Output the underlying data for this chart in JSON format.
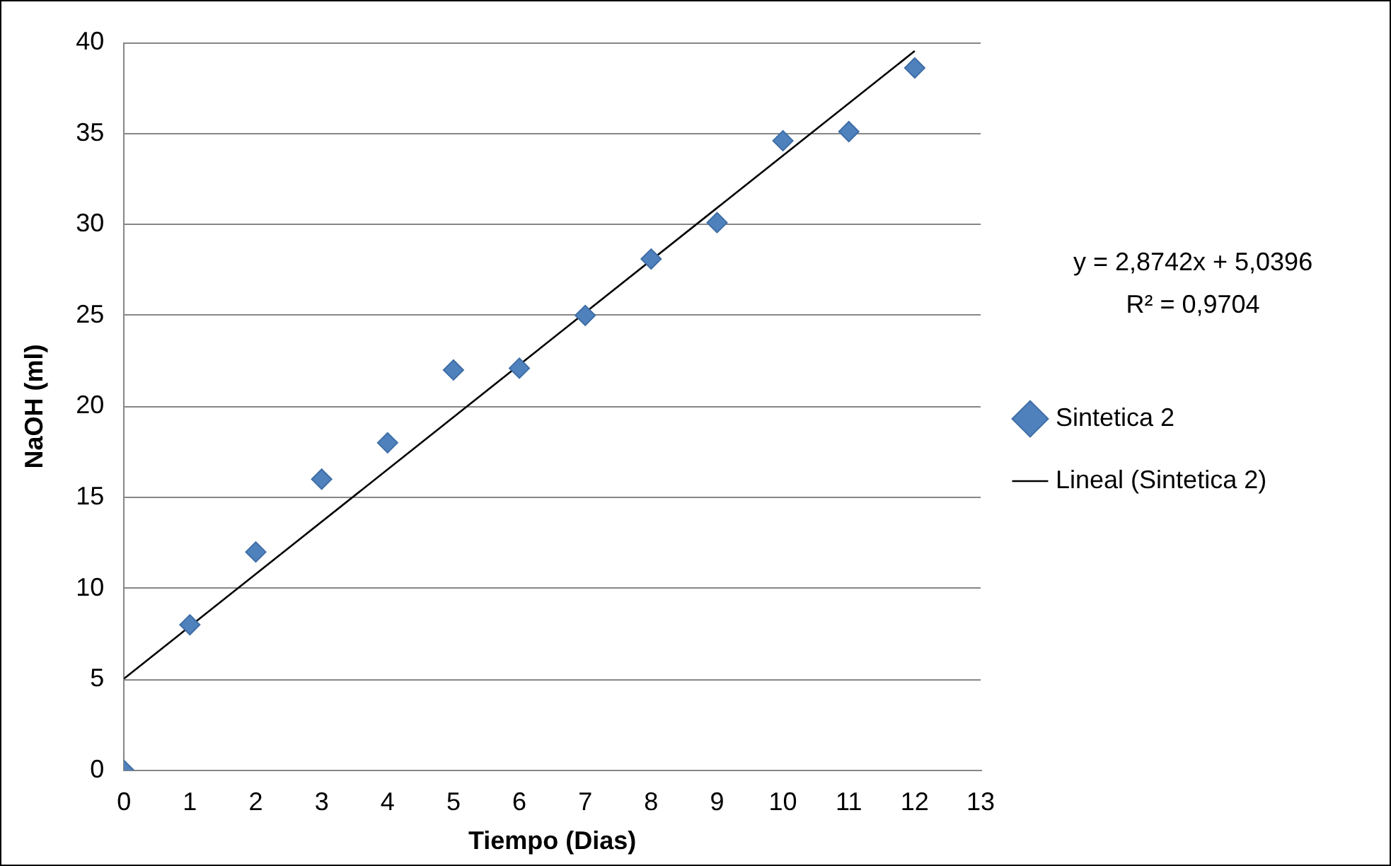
{
  "chart_data": {
    "type": "scatter",
    "xlabel": "Tiempo (Dias)",
    "ylabel": "NaOH (ml)",
    "x": [
      0,
      1,
      2,
      3,
      4,
      5,
      6,
      7,
      8,
      9,
      10,
      11,
      12
    ],
    "series": [
      {
        "name": "Sintetica 2",
        "type": "scatter",
        "color": "#4f81bd",
        "marker": "diamond",
        "values": [
          0,
          8,
          12,
          16,
          18,
          22,
          22.1,
          25,
          28.1,
          30.1,
          34.6,
          35.1,
          38.6
        ]
      },
      {
        "name": "Lineal (Sintetica 2)",
        "type": "line",
        "color": "#000000",
        "marker": "none",
        "line_style": "solid",
        "x": [
          0,
          12
        ],
        "values": [
          5.04,
          39.53
        ]
      }
    ],
    "xlim": [
      0,
      13
    ],
    "xticks": [
      0,
      1,
      2,
      3,
      4,
      5,
      6,
      7,
      8,
      9,
      10,
      11,
      12,
      13
    ],
    "ylim": [
      0,
      40
    ],
    "yticks": [
      0,
      5,
      10,
      15,
      20,
      25,
      30,
      35,
      40
    ],
    "grid": "y",
    "legend": "right",
    "annotations": [
      "y = 2,8742x + 5,0396",
      "R² = 0,9704"
    ]
  }
}
